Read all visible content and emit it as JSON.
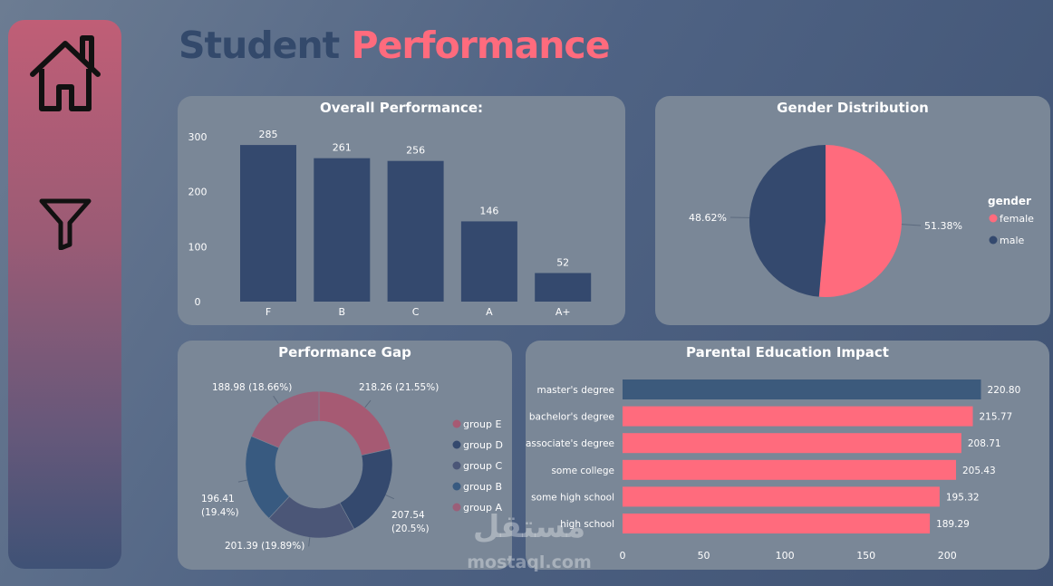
{
  "dashboard": {
    "title_part1": "Student ",
    "title_part2": "Performance",
    "nav": [
      {
        "name": "home",
        "icon": "home-icon"
      },
      {
        "name": "filter",
        "icon": "filter-icon"
      }
    ],
    "colors": {
      "pink": "#ff6b7d",
      "navy": "#34496e",
      "steel": "#3c5a7c",
      "card": "#7a8797"
    },
    "watermark": {
      "arabic": "مستقل",
      "latin": "mostaql.com"
    }
  },
  "chart_data": [
    {
      "type": "bar",
      "title": "Overall Performance:",
      "categories": [
        "F",
        "B",
        "C",
        "A",
        "A+"
      ],
      "values": [
        285,
        261,
        256,
        146,
        52
      ],
      "yticks": [
        0,
        100,
        200,
        300
      ],
      "ylim": [
        0,
        300
      ],
      "color": "#34496e"
    },
    {
      "type": "pie",
      "title": "Gender Distribution",
      "legend_title": "gender",
      "legend_position": "right",
      "slices": [
        {
          "name": "female",
          "value": 51.38,
          "label": "51.38%",
          "color": "#ff6b7d"
        },
        {
          "name": "male",
          "value": 48.62,
          "label": "48.62%",
          "color": "#34496e"
        }
      ]
    },
    {
      "type": "pie",
      "title": "Performance Gap",
      "legend_position": "right",
      "slices": [
        {
          "name": "group E",
          "value": 218.26,
          "label": "218.26 (21.55%)",
          "color": "#a65a73"
        },
        {
          "name": "group D",
          "value": 207.54,
          "label": "207.54 (20.5%)",
          "color": "#34496e"
        },
        {
          "name": "group C",
          "value": 201.39,
          "label": "201.39 (19.89%)",
          "color": "#4b5677"
        },
        {
          "name": "group B",
          "value": 196.41,
          "label": "196.41 (19.4%)",
          "color": "#385a80"
        },
        {
          "name": "group A",
          "value": 188.98,
          "label": "188.98 (18.66%)",
          "color": "#9b5f79"
        }
      ],
      "legend_order": [
        "group E",
        "group D",
        "group C",
        "group B",
        "group A"
      ]
    },
    {
      "type": "bar",
      "orientation": "horizontal",
      "title": "Parental Education Impact",
      "categories": [
        "master's degree",
        "bachelor's degree",
        "associate's degree",
        "some college",
        "some high school",
        "high school"
      ],
      "values": [
        220.8,
        215.77,
        208.71,
        205.43,
        195.32,
        189.29
      ],
      "value_labels": [
        "220.80",
        "215.77",
        "208.71",
        "205.43",
        "195.32",
        "189.29"
      ],
      "colors": [
        "#3c5a7c",
        "#ff6b7d",
        "#ff6b7d",
        "#ff6b7d",
        "#ff6b7d",
        "#ff6b7d"
      ],
      "xticks": [
        0,
        50,
        100,
        150,
        200
      ],
      "xlim": [
        0,
        230
      ]
    }
  ]
}
